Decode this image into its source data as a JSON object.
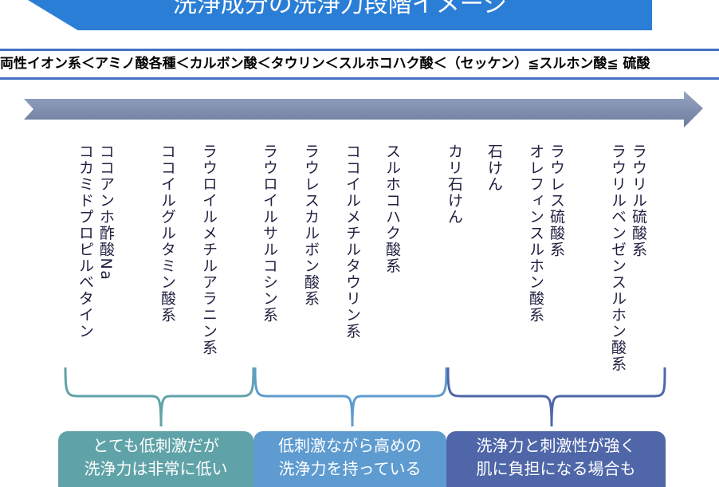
{
  "title": "洗浄成分の洗浄力段階イメージ",
  "sequence": "両性イオン系＜アミノ酸各種＜カルボン酸＜タウリン＜スルホコハク酸＜（セッケン）≦スルホン酸≦ 硫酸",
  "columns": [
    {
      "text": "ココアンホ酢酸Na\nコカミドプロピルベタイン"
    },
    {
      "text": "ココイルグルタミン酸系"
    },
    {
      "text": "ラウロイルメチルアラニン系"
    },
    {
      "text": "ラウロイルサルコシン系"
    },
    {
      "text": "ラウレスカルボン酸系"
    },
    {
      "text": "ココイルメチルタウリン系"
    },
    {
      "text": "スルホコハク酸系"
    },
    {
      "text": "カリ石けん"
    },
    {
      "text": "石けん"
    },
    {
      "text": "ラウレス硫酸系\nオレフィンスルホン酸系"
    },
    {
      "text": "ラウリル硫酸系\nラウリルベンゼンスルホン酸系"
    }
  ],
  "groups": [
    {
      "label": "とても低刺激だが\n洗浄力は非常に低い",
      "color": "#5fa3a8"
    },
    {
      "label": "低刺激ながら高めの\n洗浄力を持っている",
      "color": "#5e9bd0"
    },
    {
      "label": "洗浄力と刺激性が強く\n肌に負担になる場合も",
      "color": "#4f67a8"
    }
  ],
  "colors": {
    "banner": "#2b7ed6",
    "rule": "#4472c4",
    "arrow": "#7f8fae"
  }
}
